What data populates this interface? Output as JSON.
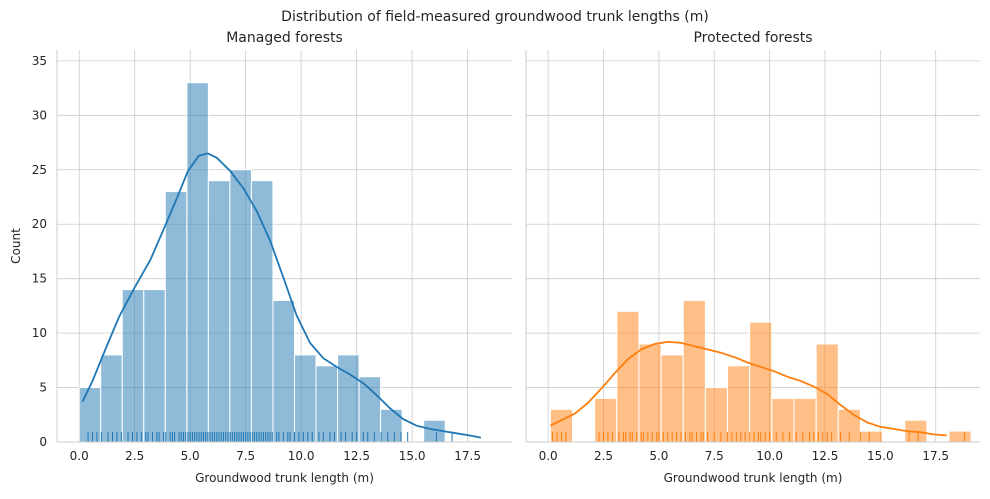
{
  "figure": {
    "suptitle": "Distribution of field-measured groundwood trunk lengths (m)",
    "ylabel": "Count"
  },
  "chart_data": [
    {
      "type": "bar",
      "title": "Managed forests",
      "xlabel": "Groundwood trunk length (m)",
      "ylabel": "Count",
      "xlim": [
        -1,
        19.5
      ],
      "ylim": [
        0,
        36
      ],
      "xticks": [
        "0.0",
        "2.5",
        "5.0",
        "7.5",
        "10.0",
        "12.5",
        "15.0",
        "17.5"
      ],
      "yticks": [
        "0",
        "5",
        "10",
        "15",
        "20",
        "25",
        "30",
        "35"
      ],
      "color": "#1f77b4",
      "bins": [
        {
          "start": 0.0,
          "end": 0.97,
          "count": 5
        },
        {
          "start": 0.97,
          "end": 1.94,
          "count": 8
        },
        {
          "start": 1.94,
          "end": 2.91,
          "count": 14
        },
        {
          "start": 2.91,
          "end": 3.88,
          "count": 14
        },
        {
          "start": 3.88,
          "end": 4.85,
          "count": 23
        },
        {
          "start": 4.85,
          "end": 5.82,
          "count": 33
        },
        {
          "start": 5.82,
          "end": 6.79,
          "count": 24
        },
        {
          "start": 6.79,
          "end": 7.76,
          "count": 25
        },
        {
          "start": 7.76,
          "end": 8.73,
          "count": 24
        },
        {
          "start": 8.73,
          "end": 9.7,
          "count": 13
        },
        {
          "start": 9.7,
          "end": 10.67,
          "count": 8
        },
        {
          "start": 10.67,
          "end": 11.64,
          "count": 7
        },
        {
          "start": 11.64,
          "end": 12.61,
          "count": 8
        },
        {
          "start": 12.61,
          "end": 13.58,
          "count": 6
        },
        {
          "start": 13.58,
          "end": 14.55,
          "count": 3
        },
        {
          "start": 14.55,
          "end": 15.52,
          "count": 0
        },
        {
          "start": 15.52,
          "end": 16.49,
          "count": 2
        }
      ],
      "kde": {
        "x": [
          0.15,
          0.6,
          1.2,
          1.8,
          2.5,
          3.2,
          3.8,
          4.4,
          4.9,
          5.4,
          5.8,
          6.2,
          6.8,
          7.4,
          8.0,
          8.6,
          9.2,
          9.8,
          10.4,
          11.0,
          11.6,
          12.2,
          12.8,
          13.4,
          14.0,
          14.6,
          15.2,
          15.8,
          16.4,
          17.0,
          17.6,
          18.1
        ],
        "y": [
          3.7,
          5.6,
          8.6,
          11.5,
          14.2,
          16.7,
          19.5,
          22.4,
          24.9,
          26.3,
          26.5,
          26.1,
          24.9,
          23.3,
          21.2,
          18.5,
          15.1,
          11.6,
          9.1,
          7.7,
          6.9,
          6.2,
          5.4,
          4.3,
          3.1,
          2.1,
          1.5,
          1.2,
          1.0,
          0.8,
          0.6,
          0.4
        ]
      },
      "rug": [
        0.4,
        0.6,
        0.8,
        1.0,
        1.3,
        1.5,
        1.7,
        1.9,
        2.2,
        2.4,
        2.6,
        2.8,
        3.0,
        3.1,
        3.3,
        3.5,
        3.6,
        3.8,
        3.9,
        4.1,
        4.2,
        4.3,
        4.5,
        4.6,
        4.7,
        4.8,
        4.9,
        5.0,
        5.1,
        5.2,
        5.3,
        5.4,
        5.5,
        5.6,
        5.7,
        5.8,
        5.9,
        6.0,
        6.1,
        6.2,
        6.3,
        6.4,
        6.5,
        6.6,
        6.7,
        6.8,
        6.9,
        7.0,
        7.1,
        7.2,
        7.3,
        7.4,
        7.5,
        7.6,
        7.7,
        7.8,
        7.9,
        8.0,
        8.1,
        8.2,
        8.3,
        8.4,
        8.5,
        8.6,
        8.7,
        8.9,
        9.0,
        9.2,
        9.4,
        9.5,
        9.7,
        9.9,
        10.1,
        10.3,
        10.5,
        10.8,
        11.0,
        11.3,
        11.5,
        11.8,
        12.0,
        12.3,
        12.5,
        12.8,
        13.0,
        13.3,
        13.6,
        13.9,
        14.2,
        14.5,
        14.8,
        16.1,
        16.8
      ]
    },
    {
      "type": "bar",
      "title": "Protected forests",
      "xlabel": "Groundwood trunk length (m)",
      "ylabel": "",
      "xlim": [
        -1,
        19.5
      ],
      "ylim": [
        0,
        36
      ],
      "xticks": [
        "0.0",
        "2.5",
        "5.0",
        "7.5",
        "10.0",
        "12.5",
        "15.0",
        "17.5"
      ],
      "yticks": [],
      "color": "#ff7f0e",
      "bins": [
        {
          "start": 0.1,
          "end": 1.1,
          "count": 3
        },
        {
          "start": 1.1,
          "end": 2.1,
          "count": 0
        },
        {
          "start": 2.1,
          "end": 3.1,
          "count": 4
        },
        {
          "start": 3.1,
          "end": 4.1,
          "count": 12
        },
        {
          "start": 4.1,
          "end": 5.1,
          "count": 9
        },
        {
          "start": 5.1,
          "end": 6.1,
          "count": 8
        },
        {
          "start": 6.1,
          "end": 7.1,
          "count": 13
        },
        {
          "start": 7.1,
          "end": 8.1,
          "count": 5
        },
        {
          "start": 8.1,
          "end": 9.1,
          "count": 7
        },
        {
          "start": 9.1,
          "end": 10.1,
          "count": 11
        },
        {
          "start": 10.1,
          "end": 11.1,
          "count": 4
        },
        {
          "start": 11.1,
          "end": 12.1,
          "count": 4
        },
        {
          "start": 12.1,
          "end": 13.1,
          "count": 9
        },
        {
          "start": 13.1,
          "end": 14.1,
          "count": 3
        },
        {
          "start": 14.1,
          "end": 15.1,
          "count": 1
        },
        {
          "start": 15.1,
          "end": 16.1,
          "count": 0
        },
        {
          "start": 16.1,
          "end": 17.1,
          "count": 2
        },
        {
          "start": 17.1,
          "end": 18.1,
          "count": 0
        },
        {
          "start": 18.1,
          "end": 19.1,
          "count": 1
        }
      ],
      "kde": {
        "x": [
          0.1,
          0.6,
          1.2,
          1.8,
          2.4,
          3.0,
          3.6,
          4.2,
          4.8,
          5.4,
          6.0,
          6.6,
          7.2,
          7.8,
          8.4,
          9.0,
          9.6,
          10.2,
          10.8,
          11.4,
          12.0,
          12.6,
          13.2,
          13.8,
          14.4,
          15.0,
          15.6,
          16.2,
          16.8,
          17.4,
          18.0
        ],
        "y": [
          1.5,
          2.0,
          2.6,
          3.6,
          4.9,
          6.3,
          7.6,
          8.5,
          9.0,
          9.2,
          9.1,
          8.8,
          8.5,
          8.2,
          7.8,
          7.3,
          6.9,
          6.5,
          6.0,
          5.6,
          5.1,
          4.4,
          3.4,
          2.5,
          1.8,
          1.4,
          1.2,
          1.0,
          0.9,
          0.7,
          0.6
        ]
      },
      "rug": [
        0.2,
        0.4,
        0.6,
        0.8,
        2.3,
        2.5,
        2.7,
        2.9,
        3.2,
        3.4,
        3.5,
        3.7,
        3.8,
        4.0,
        4.2,
        4.3,
        4.5,
        4.7,
        4.9,
        5.0,
        5.2,
        5.4,
        5.6,
        5.8,
        6.0,
        6.2,
        6.4,
        6.5,
        6.7,
        6.9,
        7.0,
        7.2,
        7.5,
        7.8,
        8.1,
        8.3,
        8.5,
        8.7,
        8.9,
        9.1,
        9.3,
        9.5,
        9.6,
        9.8,
        10.0,
        10.3,
        10.6,
        10.9,
        11.2,
        11.5,
        11.8,
        12.0,
        12.2,
        12.4,
        12.6,
        12.8,
        13.2,
        13.6,
        14.1,
        14.5,
        16.3,
        16.7,
        18.8
      ]
    }
  ]
}
